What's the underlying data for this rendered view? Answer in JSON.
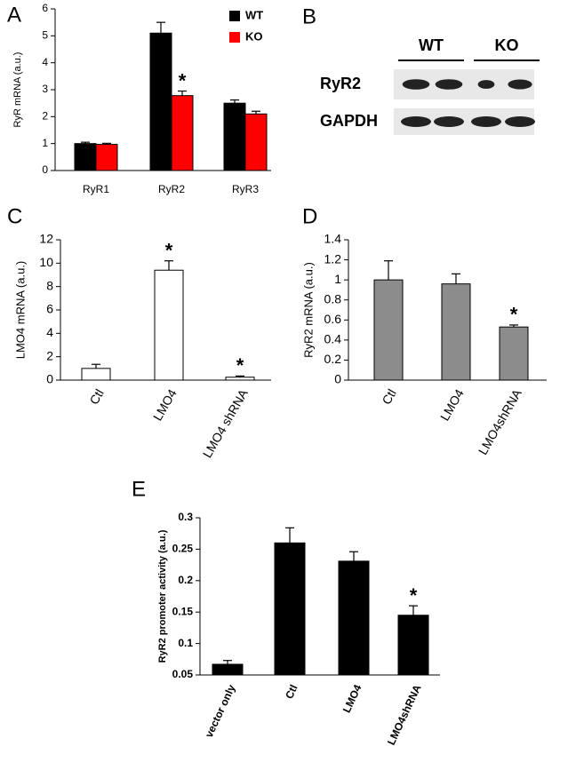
{
  "chart_data": [
    {
      "type": "bar",
      "panel": "A",
      "ylabel": "RyR mRNA (a.u.)",
      "categories": [
        "RyR1",
        "RyR2",
        "RyR3"
      ],
      "series": [
        {
          "name": "WT",
          "color": "#000000",
          "values": [
            1.0,
            5.1,
            2.5
          ],
          "errors": [
            0.05,
            0.4,
            0.12
          ]
        },
        {
          "name": "KO",
          "color": "#ff0000",
          "values": [
            0.97,
            2.78,
            2.1
          ],
          "errors": [
            0.04,
            0.17,
            0.1
          ]
        }
      ],
      "ylim": [
        0,
        6
      ],
      "yticks": [
        0,
        1,
        2,
        3,
        4,
        5,
        6
      ],
      "legend": "top-right",
      "annotations": [
        {
          "text": "*",
          "x": "RyR2",
          "series": "KO"
        }
      ]
    },
    {
      "type": "blot",
      "panel": "B",
      "column_labels": [
        "WT",
        "KO"
      ],
      "row_labels": [
        "RyR2",
        "GAPDH"
      ]
    },
    {
      "type": "bar",
      "panel": "C",
      "ylabel": "LMO4 mRNA (a.u.)",
      "categories": [
        "Ctl",
        "LMO4",
        "LMO4 shRNA"
      ],
      "values": [
        1.0,
        9.4,
        0.25
      ],
      "errors": [
        0.35,
        0.8,
        0.1
      ],
      "color": "#ffffff",
      "ylim": [
        0,
        12
      ],
      "yticks": [
        0,
        2,
        4,
        6,
        8,
        10,
        12
      ],
      "annotations": [
        {
          "text": "*",
          "x": "LMO4"
        },
        {
          "text": "*",
          "x": "LMO4 shRNA"
        }
      ]
    },
    {
      "type": "bar",
      "panel": "D",
      "ylabel": "RyR2 mRNA (a.u.)",
      "categories": [
        "Ctl",
        "LMO4",
        "LMO4shRNA"
      ],
      "values": [
        1.0,
        0.96,
        0.53
      ],
      "errors": [
        0.19,
        0.1,
        0.02
      ],
      "color": "#8c8c8c",
      "ylim": [
        0,
        1.4
      ],
      "yticks": [
        0,
        0.2,
        0.4,
        0.6,
        0.8,
        1,
        1.2,
        1.4
      ],
      "annotations": [
        {
          "text": "*",
          "x": "LMO4shRNA"
        }
      ]
    },
    {
      "type": "bar",
      "panel": "E",
      "ylabel": "RyR2 promoter activity (a.u.)",
      "categories": [
        "vector only",
        "Ctl",
        "LMO4",
        "LMO4shRNA"
      ],
      "values": [
        0.067,
        0.26,
        0.231,
        0.145
      ],
      "errors": [
        0.006,
        0.024,
        0.015,
        0.015
      ],
      "color": "#000000",
      "ylim": [
        0.05,
        0.3
      ],
      "yticks": [
        0.05,
        0.1,
        0.15,
        0.2,
        0.25,
        0.3
      ],
      "annotations": [
        {
          "text": "*",
          "x": "LMO4shRNA"
        }
      ]
    }
  ]
}
